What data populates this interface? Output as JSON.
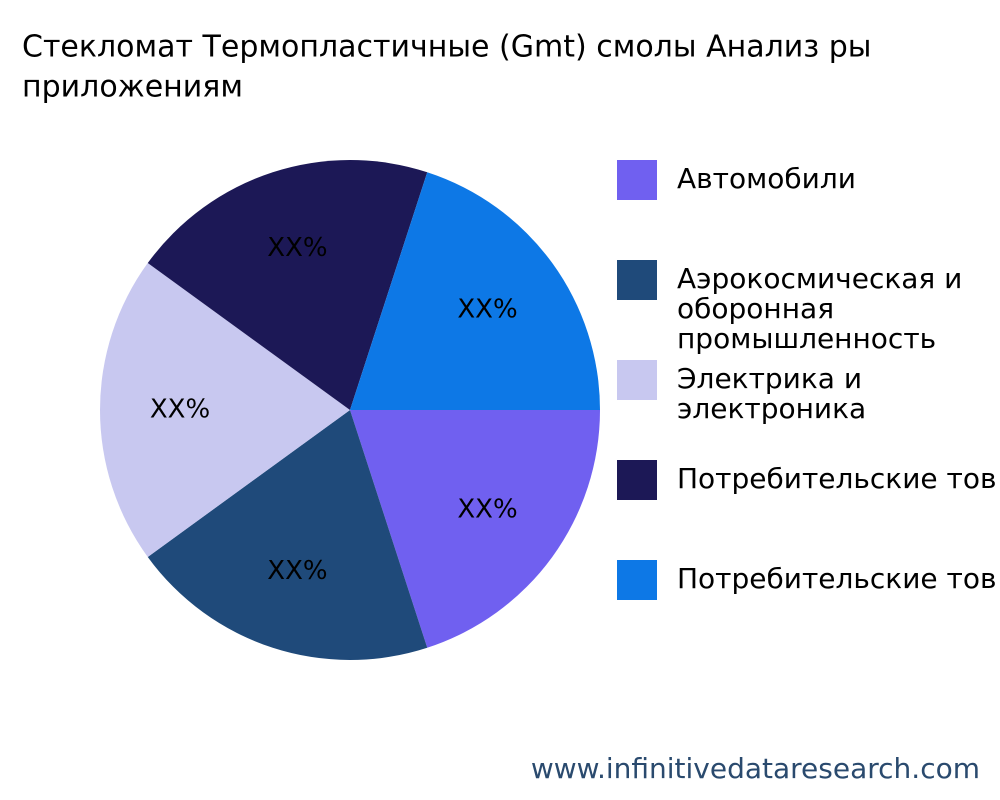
{
  "chart_data": {
    "type": "pie",
    "title_lines": [
      "Стекломат Термопластичные (Gmt) смолы Анализ ры",
      "приложениям"
    ],
    "categories": [
      "Автомобили",
      "Аэрокосмическая и оборонная промышленность",
      "Электрика и электроника",
      "Потребительские тов",
      "Потребительские тов"
    ],
    "values": [
      20,
      20,
      20,
      20,
      20
    ],
    "value_labels": [
      "XX%",
      "XX%",
      "XX%",
      "XX%",
      "XX%"
    ],
    "colors": [
      "#7060f0",
      "#1f4a7a",
      "#c8c8f0",
      "#1c1856",
      "#0d78e6"
    ],
    "legend": "right",
    "footer": "www.infinitivedataresearch.com"
  }
}
